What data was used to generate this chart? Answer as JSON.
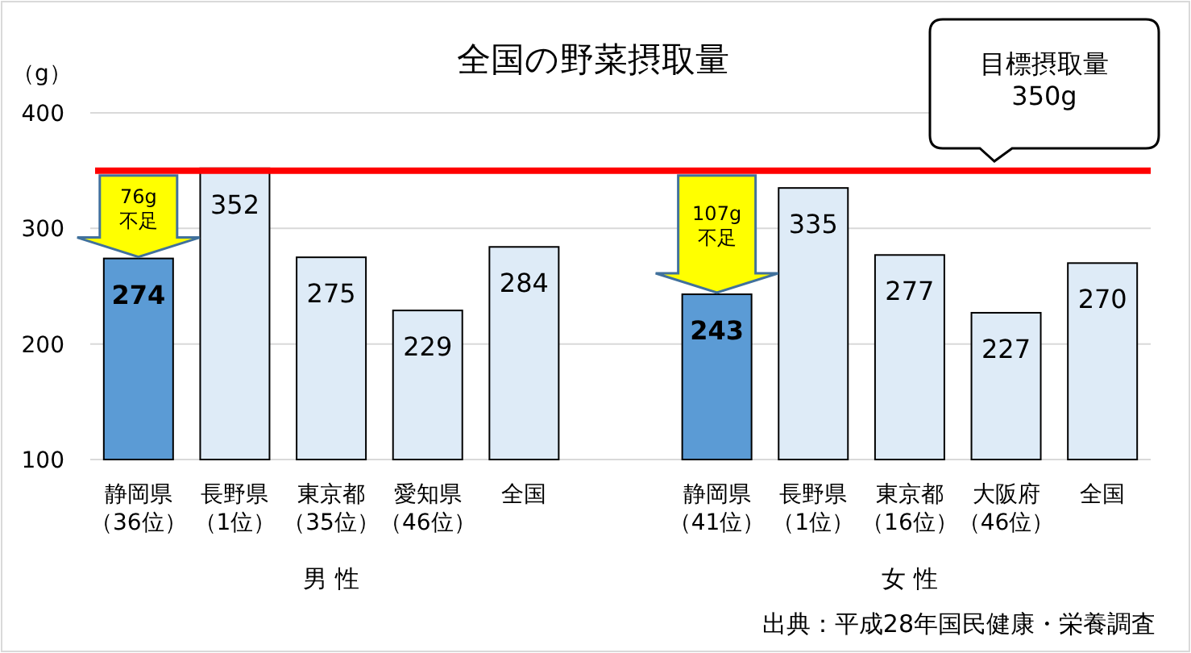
{
  "chart_data": {
    "type": "bar",
    "title": "全国の野菜摂取量",
    "ylabel": "（g）",
    "categories": [
      "静岡県（36位）",
      "長野県（1位）",
      "東京都（35位）",
      "愛知県（46位）",
      "全国",
      null,
      "静岡県（41位）",
      "長野県（1位）",
      "東京都（16位）",
      "大阪府（46位）",
      "全国"
    ],
    "values": [
      274,
      352,
      275,
      229,
      284,
      null,
      243,
      335,
      277,
      227,
      270
    ],
    "colors": [
      "#5b9bd5",
      "#deebf7",
      "#deebf7",
      "#deebf7",
      "#deebf7",
      null,
      "#5b9bd5",
      "#deebf7",
      "#deebf7",
      "#deebf7",
      "#deebf7"
    ],
    "data_labels": true,
    "ylim": [
      100,
      400
    ],
    "yticks": [
      100,
      200,
      300,
      400
    ],
    "grid": "y",
    "ref_lines": [
      {
        "axis": "y",
        "value": 350,
        "label": "目標摂取量\n350g",
        "color": "#ff0000"
      }
    ],
    "annotations": [
      "男 性",
      "女 性",
      "出典：平成28年国民健康・栄養調査",
      {
        "text": "76g\n不足",
        "x": "静岡県（36位）",
        "y": 274
      },
      {
        "text": "107g\n不足",
        "x": "静岡県（41位）",
        "y": 243
      }
    ]
  }
}
